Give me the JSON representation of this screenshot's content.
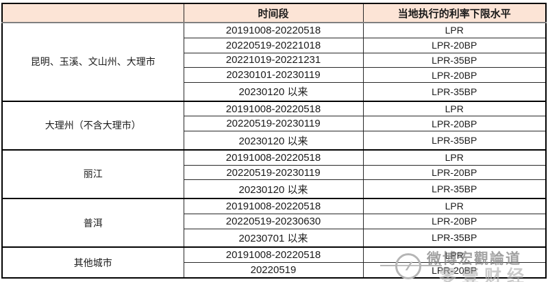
{
  "table": {
    "headers": [
      "",
      "时间段",
      "当地执行的利率下限水平"
    ],
    "groups": [
      {
        "region": "昆明、玉溪、文山州、大理市",
        "rows": [
          [
            "20191008-20220518",
            "LPR"
          ],
          [
            "20220519-20221018",
            "LPR-20BP"
          ],
          [
            "20221019-20221231",
            "LPR-35BP"
          ],
          [
            "20230101-20230119",
            "LPR-20BP"
          ],
          [
            "20230120 以来",
            "LPR-35BP"
          ]
        ]
      },
      {
        "region": "大理州（不含大理市）",
        "rows": [
          [
            "20191008-20220518",
            "LPR"
          ],
          [
            "20220519-20230119",
            "LPR-20BP"
          ],
          [
            "20230120 以来",
            "LPR-35BP"
          ]
        ]
      },
      {
        "region": "丽江",
        "rows": [
          [
            "20191008-20220518",
            "LPR"
          ],
          [
            "20220519-20230119",
            "LPR-20BP"
          ],
          [
            "20230120 以来",
            "LPR-35BP"
          ]
        ]
      },
      {
        "region": "普洱",
        "rows": [
          [
            "20191008-20220518",
            "LPR"
          ],
          [
            "20220519-20230630",
            "LPR-20BP"
          ],
          [
            "20230701 以来",
            "LPR-35BP"
          ]
        ]
      },
      {
        "region": "其他城市",
        "rows": [
          [
            "20191008-20220518",
            "LPR"
          ],
          [
            "20220519",
            "LPR-20BP"
          ]
        ]
      }
    ]
  },
  "watermark": {
    "logo_glyph": "∕∕",
    "line1": "微博宏觀論道",
    "line2": "零壹财经"
  },
  "colors": {
    "header_bg": "#fce4d6",
    "outer_border": "#000000",
    "inner_border": "#262626",
    "header_underline": "#7f7f7f",
    "watermark_gray": "#b5b5b5"
  }
}
